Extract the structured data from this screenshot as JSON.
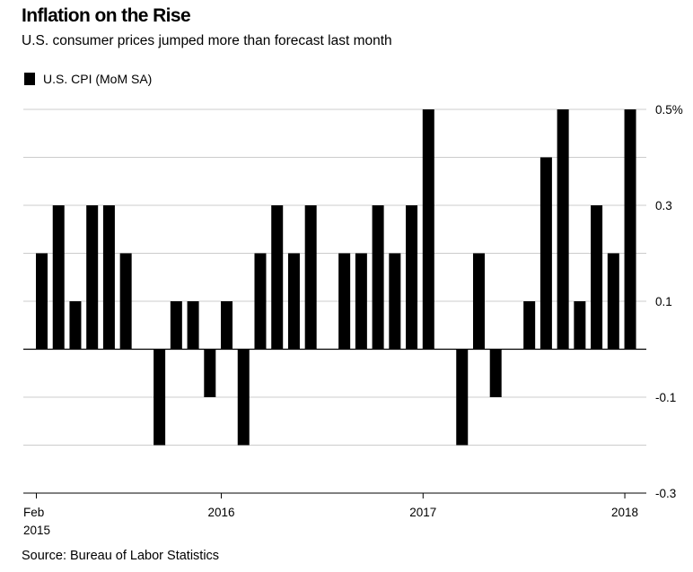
{
  "header": {
    "title": "Inflation on the Rise",
    "subtitle": "U.S. consumer prices jumped more than forecast last month"
  },
  "legend": {
    "label": "U.S. CPI (MoM SA)",
    "color": "#000000"
  },
  "source": "Source: Bureau of Labor Statistics",
  "chart_data": {
    "type": "bar",
    "title": "Inflation on the Rise",
    "subtitle": "U.S. consumer prices jumped more than forecast last month",
    "x_tick_labels": [
      {
        "index": 0,
        "lines": [
          "Feb",
          "2015"
        ]
      },
      {
        "index": 11,
        "lines": [
          "2016"
        ]
      },
      {
        "index": 23,
        "lines": [
          "2017"
        ]
      },
      {
        "index": 35,
        "lines": [
          "2018"
        ]
      }
    ],
    "y_ticks": [
      {
        "value": 0.5,
        "label": "0.5%"
      },
      {
        "value": 0.3,
        "label": "0.3"
      },
      {
        "value": 0.1,
        "label": "0.1"
      },
      {
        "value": -0.1,
        "label": "-0.1"
      },
      {
        "value": -0.3,
        "label": "-0.3"
      }
    ],
    "ylim": [
      -0.3,
      0.5
    ],
    "y_gridlines": [
      0.5,
      0.4,
      0.3,
      0.2,
      0.1,
      0.0,
      -0.1,
      -0.2,
      -0.3
    ],
    "grid": true,
    "y_axis_side": "right",
    "legend_position": "top-left",
    "bar_color": "#000000",
    "series": [
      {
        "name": "U.S. CPI (MoM SA)",
        "categories": [
          "2015-02",
          "2015-03",
          "2015-04",
          "2015-05",
          "2015-06",
          "2015-07",
          "2015-08",
          "2015-09",
          "2015-10",
          "2015-11",
          "2015-12",
          "2016-01",
          "2016-02",
          "2016-03",
          "2016-04",
          "2016-05",
          "2016-06",
          "2016-07",
          "2016-08",
          "2016-09",
          "2016-10",
          "2016-11",
          "2016-12",
          "2017-01",
          "2017-02",
          "2017-03",
          "2017-04",
          "2017-05",
          "2017-06",
          "2017-07",
          "2017-08",
          "2017-09",
          "2017-10",
          "2017-11",
          "2017-12",
          "2018-01"
        ],
        "values": [
          0.2,
          0.3,
          0.1,
          0.3,
          0.3,
          0.2,
          0.0,
          -0.2,
          0.1,
          0.1,
          -0.1,
          0.1,
          -0.2,
          0.2,
          0.3,
          0.2,
          0.3,
          0.0,
          0.2,
          0.2,
          0.3,
          0.2,
          0.3,
          0.5,
          0.0,
          -0.2,
          0.2,
          -0.1,
          0.0,
          0.1,
          0.4,
          0.5,
          0.1,
          0.3,
          0.2,
          0.5
        ]
      }
    ]
  }
}
